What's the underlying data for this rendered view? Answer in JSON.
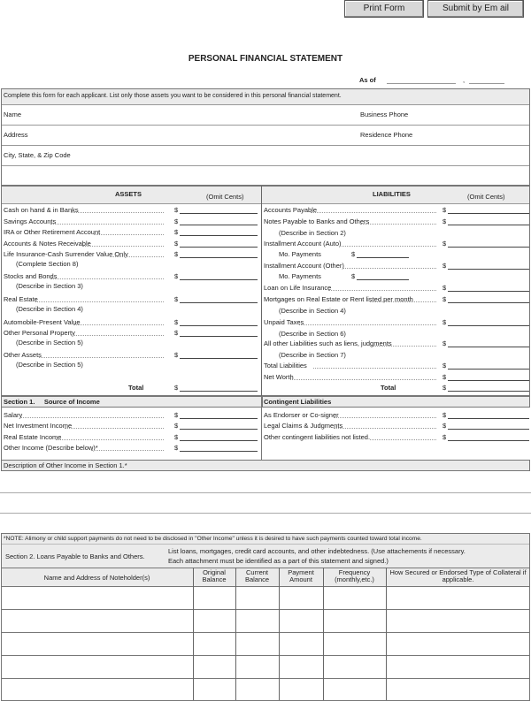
{
  "toolbar": {
    "print_label": "Print Form",
    "submit_label": "Submit by Em ail"
  },
  "title": "PERSONAL FINANCIAL STATEMENT",
  "as_of": {
    "label": "As of",
    "separator": ","
  },
  "instructions": "Complete this form for each applicant.  List only those assets you want to be considered in this personal financial statement.",
  "applicant": {
    "name": "Name",
    "business_phone": "Business Phone",
    "address": "Address",
    "residence_phone": "Residence Phone",
    "city": "City, State, & Zip Code"
  },
  "assets": {
    "header": "ASSETS",
    "omit": "(Omit Cents)",
    "items": [
      {
        "label": "Cash on hand & in Banks"
      },
      {
        "label": "Savings Accounts"
      },
      {
        "label": "IRA or Other Retirement Account"
      },
      {
        "label": "Accounts & Notes Receivable"
      },
      {
        "label": "Life Insurance-Cash Surrender Value Only",
        "sub": "(Complete Section 8)"
      },
      {
        "label": "Stocks and Bonds",
        "sub": "(Describe in Section 3)"
      },
      {
        "label": "Real Estate",
        "sub": "(Describe in Section 4)"
      },
      {
        "label": "Automobile-Present Value"
      },
      {
        "label": "Other Personal Property",
        "sub": "(Describe in Section 5)"
      },
      {
        "label": "Other Assets",
        "sub": "(Describe in Section 5)"
      }
    ],
    "total": "Total",
    "currency": "$"
  },
  "liabilities": {
    "header": "LIABILITIES",
    "omit": "(Omit Cents)",
    "items": [
      {
        "label": "Accounts Payable"
      },
      {
        "label": "Notes Payable to Banks and Others",
        "sub": "(Describe in Section 2)"
      },
      {
        "label": "Installment Account (Auto)",
        "mo": "Mo. Payments"
      },
      {
        "label": "Installment Account (Other)",
        "mo": "Mo. Payments"
      },
      {
        "label": "Loan on Life Insurance"
      },
      {
        "label": "Mortgages on Real Estate or Rent listed per month",
        "sub": "(Describe in Section 4)"
      },
      {
        "label": "Unpaid Taxes",
        "sub": "(Describe in Section 6)"
      },
      {
        "label": "All other Liabilities such as liens, judgments",
        "sub": "(Describe in Section 7)"
      },
      {
        "label": "Total Liabilities"
      },
      {
        "label": "Net Worth"
      }
    ],
    "total": "Total",
    "currency": "$"
  },
  "section1": {
    "header": "Section 1.     Source of Income",
    "items": [
      "Salary",
      "Net Investment Income",
      "Real Estate Income",
      "Other Income (Describe below)*"
    ]
  },
  "contingent": {
    "header": "Contingent Liabilities",
    "items": [
      "As Endorser or Co-signer",
      "Legal Claims & Judgments",
      "Other contingent liabilities not listed."
    ]
  },
  "description_label": "Description of Other Income in Section 1.*",
  "note": "*NOTE: Alimony or child support payments do not need to be disclosed in \"Other Income\" unless it is desired to have such payments counted toward total income.",
  "section2": {
    "title": "Section 2. Loans Payable to Banks and Others.",
    "desc1": "List loans, mortgages, credit card accounts, and other indebtedness. (Use attachements if necessary.",
    "desc2": "Each attachment must be identified as a part of this statement and signed.)",
    "columns": [
      "Name and Address of Noteholder(s)",
      "Original Balance",
      "Current Balance",
      "Payment Amount",
      "Frequency (monthly,etc.)",
      "How Secured or Endorsed Type of Collateral if applicable."
    ],
    "row_count": 5
  }
}
